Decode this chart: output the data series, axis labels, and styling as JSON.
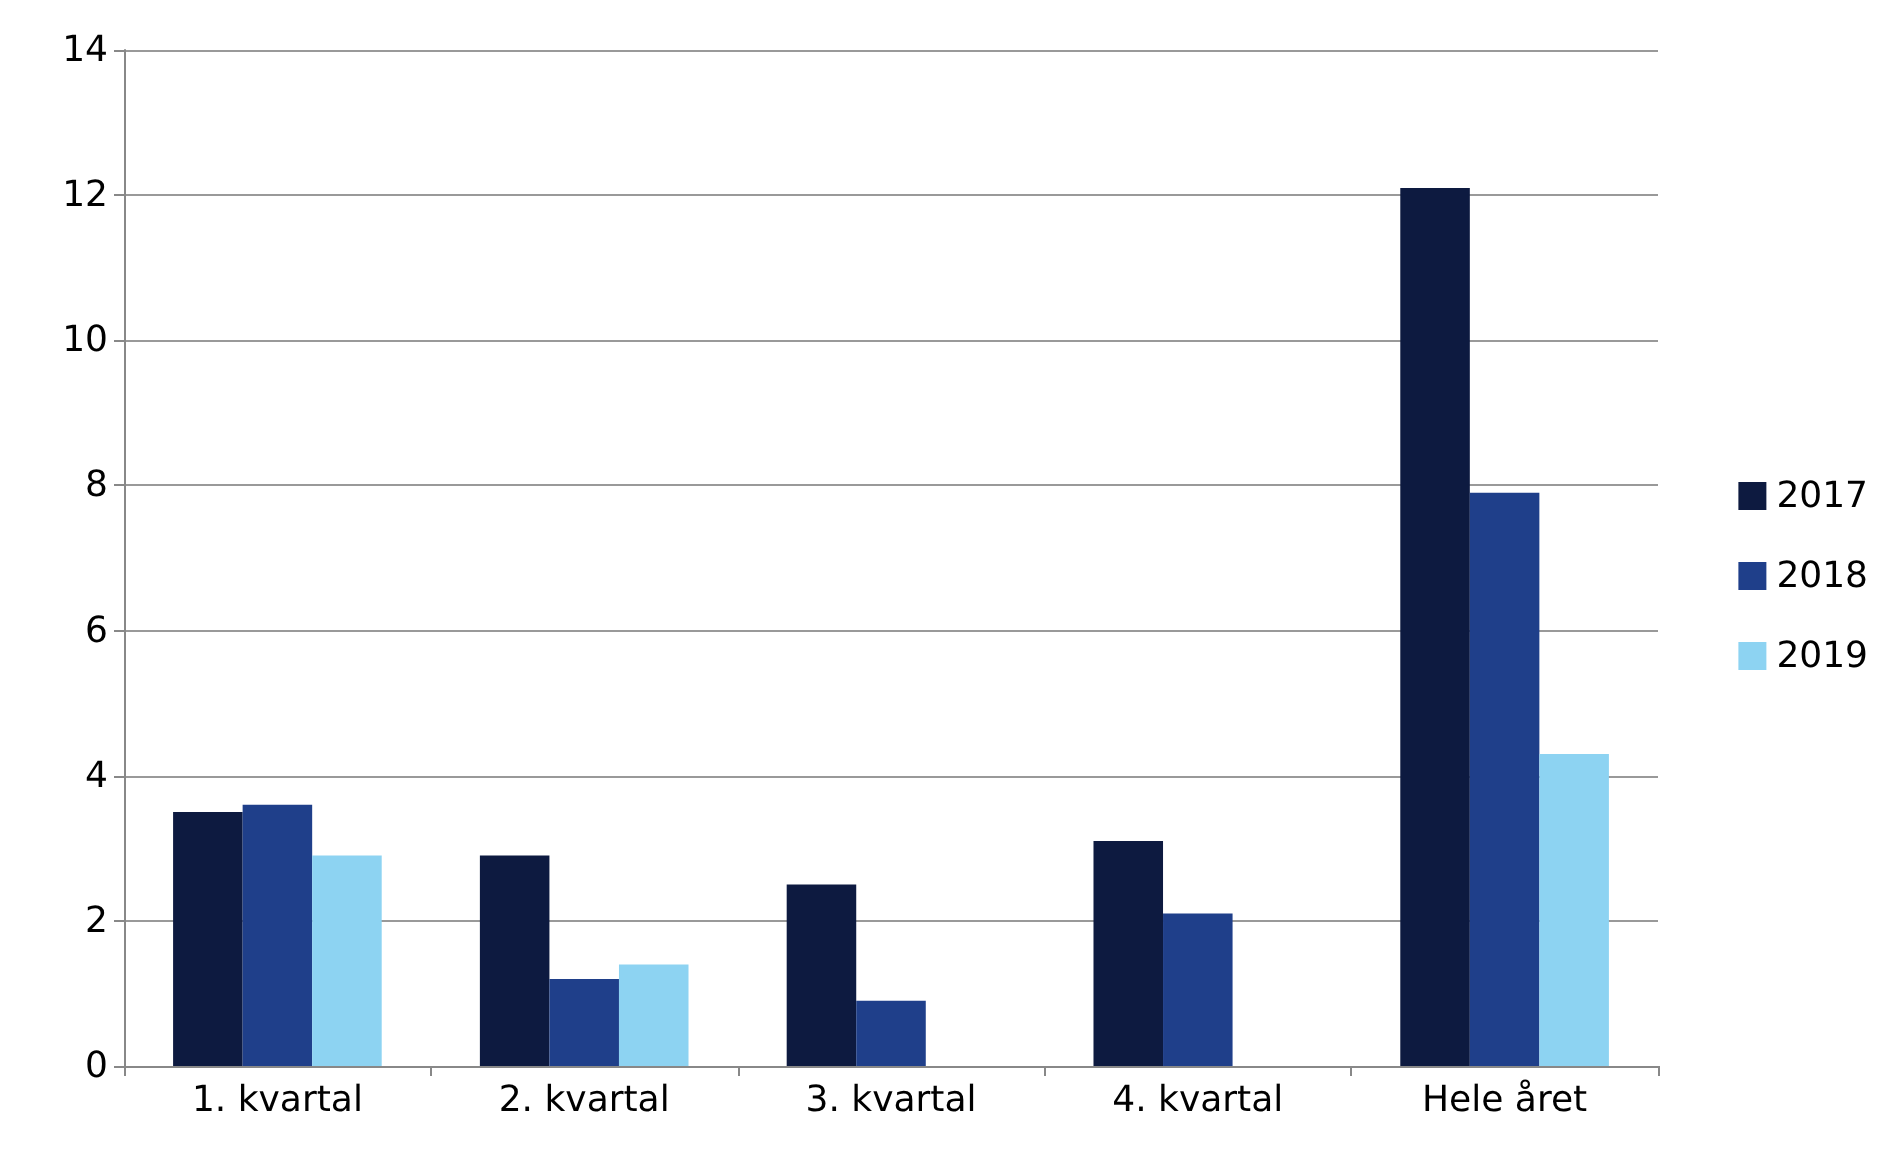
{
  "chart_data": {
    "type": "bar",
    "categories": [
      "1. kvartal",
      "2. kvartal",
      "3. kvartal",
      "4. kvartal",
      "Hele året"
    ],
    "series": [
      {
        "name": "2017",
        "color": "#0d1a40",
        "values": [
          3.5,
          2.9,
          2.5,
          3.1,
          12.1
        ]
      },
      {
        "name": "2018",
        "color": "#1f3f8a",
        "values": [
          3.6,
          1.2,
          0.9,
          2.1,
          7.9
        ]
      },
      {
        "name": "2019",
        "color": "#8dd3f2",
        "values": [
          2.9,
          1.4,
          null,
          null,
          4.3
        ]
      }
    ],
    "ylim": [
      0,
      14
    ],
    "yticks": [
      0,
      2,
      4,
      6,
      8,
      10,
      12,
      14
    ],
    "grid": "y",
    "legend": "right"
  }
}
